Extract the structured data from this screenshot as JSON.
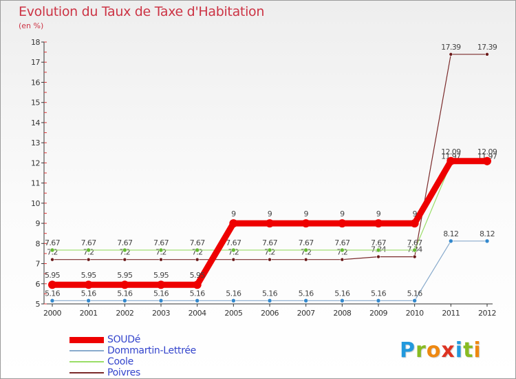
{
  "title": "Evolution du Taux de Taxe d'Habitation",
  "subtitle": "(en %)",
  "logo": {
    "text": "Proxiti",
    "letters": [
      {
        "ch": "P",
        "color": "#2299dd"
      },
      {
        "ch": "r",
        "color": "#88bb22"
      },
      {
        "ch": "o",
        "color": "#ee8811"
      },
      {
        "ch": "x",
        "color": "#dd3322"
      },
      {
        "ch": "i",
        "color": "#2299dd"
      },
      {
        "ch": "t",
        "color": "#88bb22"
      },
      {
        "ch": "i",
        "color": "#ee8811"
      }
    ]
  },
  "chart_data": {
    "type": "line",
    "title": "Evolution du Taux de Taxe d'Habitation",
    "ylabel": "(en %)",
    "xlabel": "",
    "x": [
      "2000",
      "2001",
      "2002",
      "2003",
      "2004",
      "2005",
      "2006",
      "2007",
      "2008",
      "2009",
      "2010",
      "2011",
      "2012"
    ],
    "ylim": [
      5,
      18
    ],
    "yticks": [
      5,
      6,
      7,
      8,
      9,
      10,
      11,
      12,
      13,
      14,
      15,
      16,
      17,
      18
    ],
    "grid": false,
    "legend_position": "bottom-left",
    "series": [
      {
        "name": "Poivres",
        "color": "#7a2a2a",
        "marker_color": "#6b1a1a",
        "width": 1.2,
        "marker": 2.5,
        "values": [
          7.2,
          7.2,
          7.2,
          7.2,
          7.2,
          7.2,
          7.2,
          7.2,
          7.2,
          7.34,
          7.34,
          17.39,
          17.39
        ],
        "labels": [
          "7.2",
          "7.2",
          "7.2",
          "7.2",
          "7.2",
          "7.2",
          "7.2",
          "7.2",
          "7.2",
          "7.34",
          "7.34",
          "17.39",
          "17.39"
        ]
      },
      {
        "name": "Coole",
        "color": "#99dd66",
        "marker_color": "#66bb33",
        "width": 1.2,
        "marker": 3,
        "values": [
          7.67,
          7.67,
          7.67,
          7.67,
          7.67,
          7.67,
          7.67,
          7.67,
          7.67,
          7.67,
          7.67,
          11.97,
          11.97
        ],
        "labels": [
          "7.67",
          "7.67",
          "7.67",
          "7.67",
          "7.67",
          "7.67",
          "7.67",
          "7.67",
          "7.67",
          "7.67",
          "7.67",
          "11.97",
          "11.97"
        ]
      },
      {
        "name": "Dommartin-Lettrée",
        "color": "#88aacc",
        "marker_color": "#3388cc",
        "width": 1.2,
        "marker": 3,
        "values": [
          5.16,
          5.16,
          5.16,
          5.16,
          5.16,
          5.16,
          5.16,
          5.16,
          5.16,
          5.16,
          5.16,
          8.12,
          8.12
        ],
        "labels": [
          "5.16",
          "5.16",
          "5.16",
          "5.16",
          "5.16",
          "5.16",
          "5.16",
          "5.16",
          "5.16",
          "5.16",
          "5.16",
          "8.12",
          "8.12"
        ]
      },
      {
        "name": "SOUDé",
        "color": "#ee0000",
        "marker_color": "#ee0000",
        "width": 9,
        "marker": 6,
        "values": [
          5.95,
          5.95,
          5.95,
          5.95,
          5.95,
          9,
          9,
          9,
          9,
          9,
          9,
          12.09,
          12.09
        ],
        "labels": [
          "5.95",
          "5.95",
          "5.95",
          "5.95",
          "5.95",
          "9",
          "9",
          "9",
          "9",
          "9",
          "9",
          "12.09",
          "12.09"
        ]
      }
    ]
  },
  "legend": [
    {
      "name": "SOUDé",
      "color": "#ee0000",
      "thickness": 9
    },
    {
      "name": "Dommartin-Lettrée",
      "color": "#88aacc",
      "thickness": 2
    },
    {
      "name": "Coole",
      "color": "#99dd66",
      "thickness": 2
    },
    {
      "name": "Poivres",
      "color": "#7a2a2a",
      "thickness": 2
    }
  ]
}
